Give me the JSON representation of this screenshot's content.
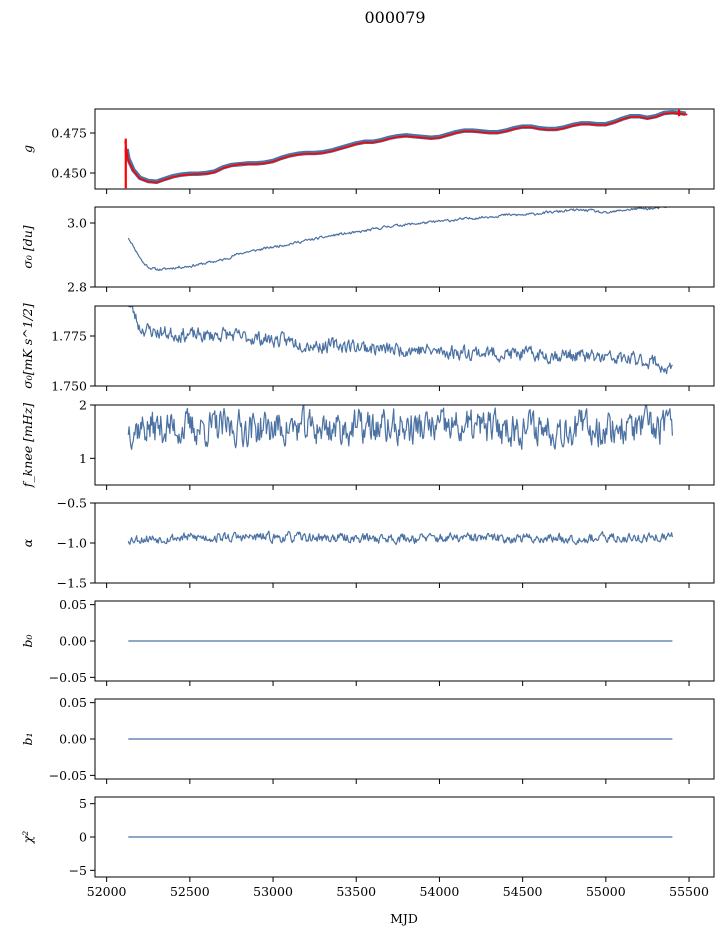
{
  "figure": {
    "title": "000079",
    "xlabel": "MJD",
    "xlim": [
      51930,
      55650
    ],
    "xticks": [
      52000,
      52500,
      53000,
      53500,
      54000,
      54500,
      55000,
      55500
    ],
    "line_color": "#4c72a3",
    "fit_color": "#ff0000"
  },
  "chart_data": [
    {
      "type": "line",
      "ylabel": "g",
      "ylim": [
        0.44,
        0.49
      ],
      "yticks": [
        0.45,
        0.475
      ],
      "yticklabels": [
        "0.450",
        "0.475"
      ],
      "series": [
        {
          "style": "thick",
          "x": [
            52120,
            52130,
            52160,
            52200,
            52250,
            52300,
            52340,
            52400,
            52450,
            52500,
            52550,
            52600,
            52650,
            52700,
            52750,
            52800,
            52850,
            52900,
            52950,
            53000,
            53050,
            53100,
            53150,
            53200,
            53250,
            53300,
            53350,
            53400,
            53450,
            53500,
            53550,
            53600,
            53650,
            53700,
            53750,
            53800,
            53850,
            53900,
            53950,
            54000,
            54050,
            54100,
            54150,
            54200,
            54250,
            54300,
            54350,
            54400,
            54450,
            54500,
            54550,
            54600,
            54650,
            54700,
            54750,
            54800,
            54850,
            54900,
            54950,
            55000,
            55050,
            55100,
            55150,
            55200,
            55250,
            55300,
            55350,
            55400,
            55450,
            55480
          ],
          "y": [
            0.465,
            0.459,
            0.452,
            0.447,
            0.445,
            0.4445,
            0.446,
            0.448,
            0.449,
            0.4495,
            0.4495,
            0.45,
            0.451,
            0.4535,
            0.455,
            0.4555,
            0.456,
            0.456,
            0.4565,
            0.4575,
            0.4595,
            0.461,
            0.462,
            0.4625,
            0.4625,
            0.463,
            0.464,
            0.4655,
            0.467,
            0.4685,
            0.4695,
            0.4695,
            0.4705,
            0.472,
            0.473,
            0.4735,
            0.473,
            0.4725,
            0.472,
            0.4725,
            0.474,
            0.4755,
            0.4765,
            0.4765,
            0.476,
            0.4755,
            0.4755,
            0.4765,
            0.478,
            0.479,
            0.479,
            0.478,
            0.4775,
            0.4775,
            0.4785,
            0.48,
            0.481,
            0.481,
            0.4805,
            0.4805,
            0.482,
            0.484,
            0.4855,
            0.4855,
            0.4845,
            0.4855,
            0.4875,
            0.488,
            0.4875,
            0.487
          ]
        },
        {
          "style": "fit",
          "x": [
            52110,
            52130,
            52160,
            52200,
            52250,
            52300,
            52340,
            52400,
            52450,
            52500,
            52550,
            52600,
            52650,
            52700,
            52750,
            52800,
            52850,
            52900,
            52950,
            53000,
            53050,
            53100,
            53150,
            53200,
            53250,
            53300,
            53350,
            53400,
            53450,
            53500,
            53550,
            53600,
            53650,
            53700,
            53750,
            53800,
            53850,
            53900,
            53950,
            54000,
            54050,
            54100,
            54150,
            54200,
            54250,
            54300,
            54350,
            54400,
            54450,
            54500,
            54550,
            54600,
            54650,
            54700,
            54750,
            54800,
            54850,
            54900,
            54950,
            55000,
            55050,
            55100,
            55150,
            55200,
            55250,
            55300,
            55350,
            55400,
            55450,
            55490
          ],
          "y": [
            0.47,
            0.458,
            0.4515,
            0.4465,
            0.4445,
            0.444,
            0.4455,
            0.4475,
            0.4485,
            0.449,
            0.4495,
            0.4495,
            0.4505,
            0.453,
            0.4545,
            0.4555,
            0.4555,
            0.4555,
            0.456,
            0.457,
            0.459,
            0.4605,
            0.4615,
            0.462,
            0.462,
            0.4625,
            0.4635,
            0.465,
            0.4665,
            0.468,
            0.469,
            0.469,
            0.47,
            0.4715,
            0.4725,
            0.473,
            0.4725,
            0.472,
            0.4715,
            0.472,
            0.4735,
            0.475,
            0.476,
            0.476,
            0.4755,
            0.475,
            0.475,
            0.476,
            0.4775,
            0.4785,
            0.4785,
            0.4775,
            0.477,
            0.477,
            0.478,
            0.4795,
            0.4805,
            0.4805,
            0.48,
            0.48,
            0.4815,
            0.4835,
            0.485,
            0.485,
            0.484,
            0.485,
            0.487,
            0.4875,
            0.487,
            0.4865
          ]
        }
      ]
    },
    {
      "type": "line",
      "ylabel": "σ₀ [du]",
      "ylim": [
        2.8,
        3.05
      ],
      "yticks": [
        2.8,
        3.0
      ],
      "yticklabels": [
        "2.8",
        "3.0"
      ],
      "noise": {
        "seed": 11,
        "amp": 0.004
      },
      "series": [
        {
          "x": [
            52130,
            52180,
            52220,
            52260,
            52300,
            52340,
            52400,
            52500,
            52600,
            52700,
            52800,
            52900,
            53000,
            53100,
            53200,
            53300,
            53400,
            53500,
            53600,
            53700,
            53800,
            53900,
            54000,
            54100,
            54200,
            54300,
            54400,
            54500,
            54600,
            54700,
            54800,
            54900,
            55000,
            55100,
            55200,
            55300,
            55350,
            55400
          ],
          "y": [
            2.955,
            2.91,
            2.875,
            2.86,
            2.855,
            2.855,
            2.86,
            2.865,
            2.875,
            2.885,
            2.905,
            2.915,
            2.925,
            2.935,
            2.945,
            2.955,
            2.965,
            2.97,
            2.98,
            2.99,
            2.995,
            3.0,
            3.005,
            3.01,
            3.015,
            3.02,
            3.025,
            3.025,
            3.03,
            3.035,
            3.04,
            3.04,
            3.03,
            3.04,
            3.045,
            3.045,
            3.05,
            3.052
          ]
        }
      ]
    },
    {
      "type": "line",
      "ylabel": "σ₀[mK s^1/2]",
      "ylim": [
        1.75,
        1.79
      ],
      "yticks": [
        1.75,
        1.775
      ],
      "yticklabels": [
        "1.750",
        "1.775"
      ],
      "noise": {
        "seed": 23,
        "amp": 0.0035
      },
      "series": [
        {
          "x": [
            52130,
            52160,
            52200,
            52250,
            52300,
            52400,
            52500,
            52600,
            52700,
            52800,
            52900,
            53000,
            53100,
            53200,
            53300,
            53400,
            53500,
            53600,
            53700,
            53800,
            53900,
            54000,
            54100,
            54200,
            54300,
            54400,
            54500,
            54600,
            54700,
            54800,
            54900,
            55000,
            55100,
            55200,
            55300,
            55350,
            55380,
            55400
          ],
          "y": [
            1.792,
            1.787,
            1.779,
            1.778,
            1.777,
            1.776,
            1.7755,
            1.775,
            1.776,
            1.7745,
            1.774,
            1.773,
            1.7725,
            1.771,
            1.77,
            1.7705,
            1.77,
            1.769,
            1.768,
            1.7685,
            1.768,
            1.767,
            1.767,
            1.767,
            1.7665,
            1.766,
            1.766,
            1.7655,
            1.7655,
            1.7655,
            1.7645,
            1.764,
            1.7635,
            1.763,
            1.762,
            1.759,
            1.757,
            1.761
          ]
        }
      ]
    },
    {
      "type": "line",
      "ylabel": "f_knee [mHz]",
      "ylim": [
        0.5,
        2.0
      ],
      "yticks": [
        1,
        2
      ],
      "yticklabels": [
        "1",
        "2"
      ],
      "noise": {
        "seed": 37,
        "amp": 0.32
      },
      "series": [
        {
          "x": [
            52130,
            52500,
            53000,
            53500,
            54000,
            54500,
            55000,
            55400
          ],
          "y": [
            1.58,
            1.57,
            1.57,
            1.57,
            1.57,
            1.58,
            1.57,
            1.58
          ]
        }
      ]
    },
    {
      "type": "line",
      "ylabel": "α",
      "ylim": [
        -1.5,
        -0.5
      ],
      "yticks": [
        -1.5,
        -1.0,
        -0.5
      ],
      "yticklabels": [
        "−1.5",
        "−1.0",
        "−0.5"
      ],
      "noise": {
        "seed": 53,
        "amp": 0.06
      },
      "series": [
        {
          "x": [
            52130,
            52500,
            53000,
            53500,
            54000,
            54500,
            55000,
            55400
          ],
          "y": [
            -0.95,
            -0.93,
            -0.93,
            -0.94,
            -0.94,
            -0.94,
            -0.94,
            -0.93
          ]
        }
      ]
    },
    {
      "type": "line",
      "ylabel": "b₀",
      "ylim": [
        -0.055,
        0.055
      ],
      "yticks": [
        -0.05,
        0.0,
        0.05
      ],
      "yticklabels": [
        "−0.05",
        "0.00",
        "0.05"
      ],
      "series": [
        {
          "x": [
            52130,
            55400
          ],
          "y": [
            0,
            0
          ]
        }
      ]
    },
    {
      "type": "line",
      "ylabel": "b₁",
      "ylim": [
        -0.055,
        0.055
      ],
      "yticks": [
        -0.05,
        0.0,
        0.05
      ],
      "yticklabels": [
        "−0.05",
        "0.00",
        "0.05"
      ],
      "series": [
        {
          "x": [
            52130,
            55400
          ],
          "y": [
            0,
            0
          ]
        }
      ]
    },
    {
      "type": "line",
      "ylabel": "χ²",
      "ylim": [
        -6,
        6
      ],
      "yticks": [
        -5,
        0,
        5
      ],
      "yticklabels": [
        "−5",
        "0",
        "5"
      ],
      "series": [
        {
          "x": [
            52130,
            55400
          ],
          "y": [
            0,
            0
          ]
        }
      ]
    }
  ]
}
